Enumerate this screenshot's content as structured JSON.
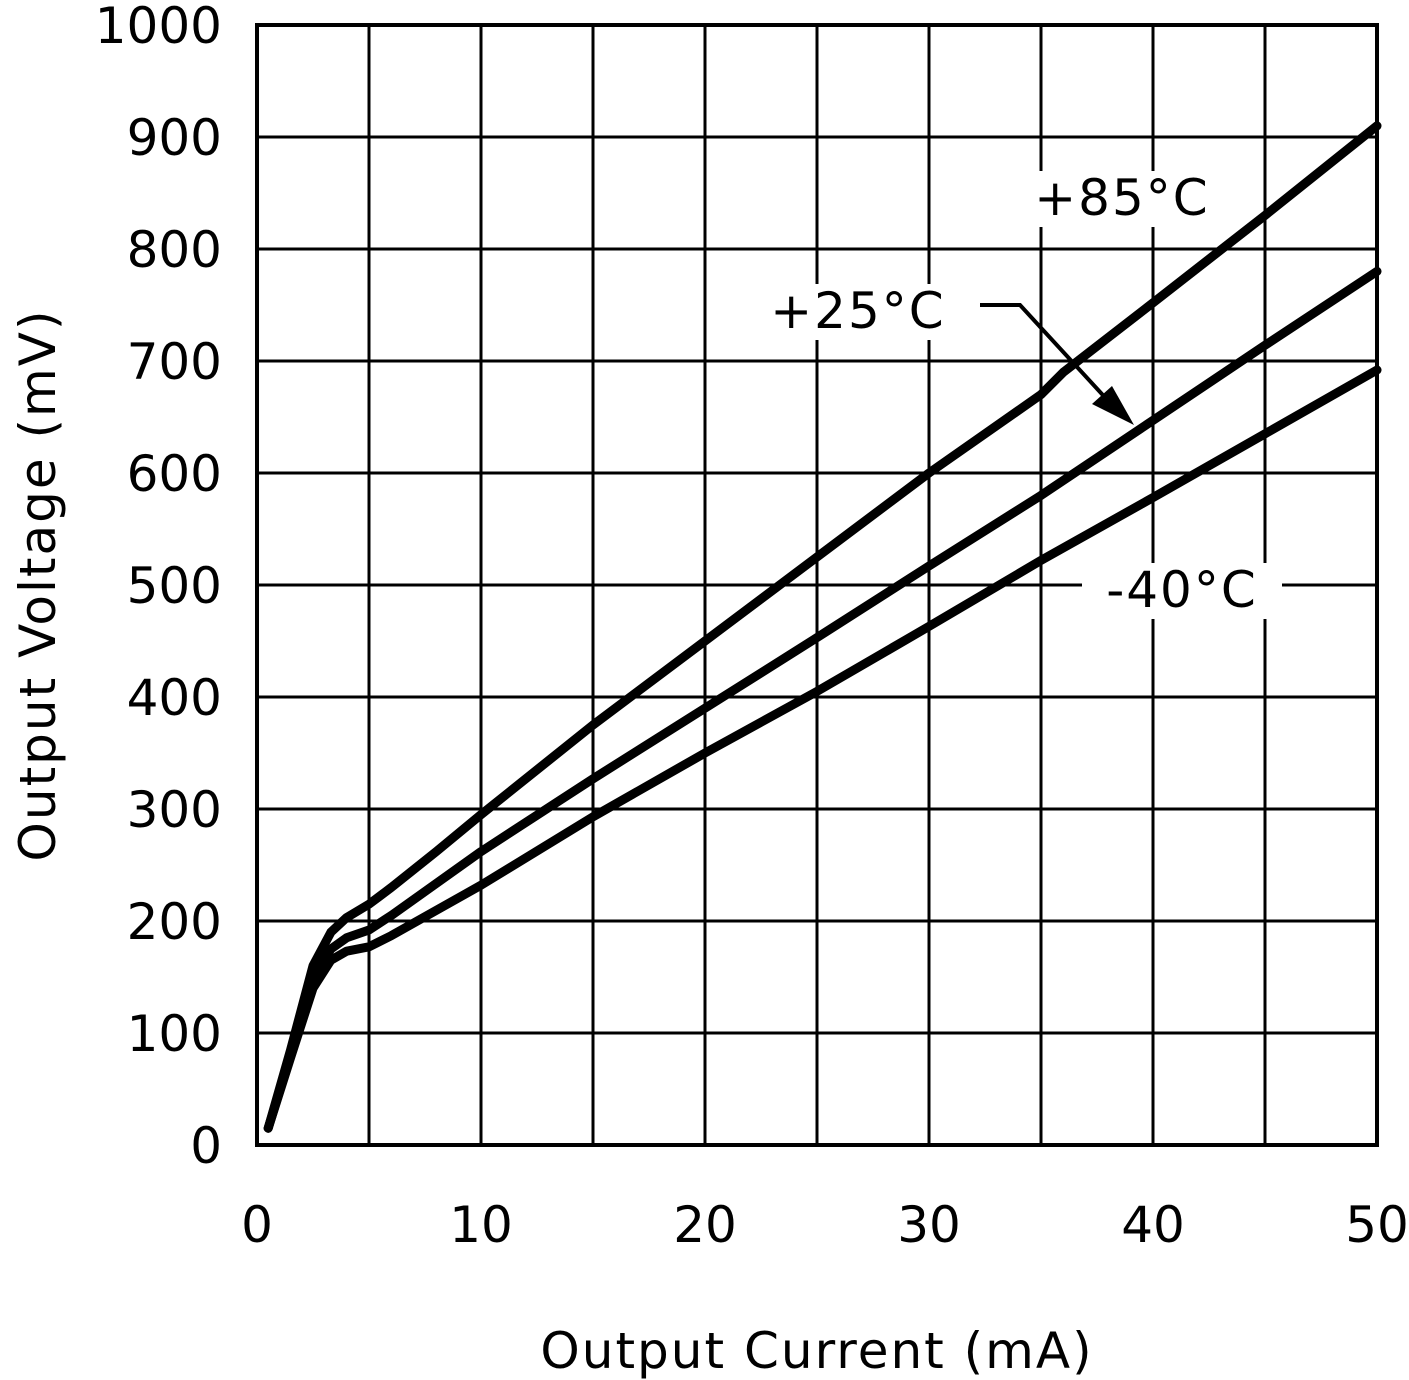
{
  "chart_data": {
    "type": "line",
    "title": "",
    "xlabel": "Output Current (mA)",
    "ylabel": "Output Voltage (mV)",
    "xlim": [
      0,
      50
    ],
    "ylim": [
      0,
      1000
    ],
    "x_ticks": [
      "0",
      "10",
      "20",
      "30",
      "40",
      "50"
    ],
    "y_ticks": [
      "0",
      "100",
      "200",
      "300",
      "400",
      "500",
      "600",
      "700",
      "800",
      "900",
      "1000"
    ],
    "grid": true,
    "line_color": "#000000",
    "series": [
      {
        "name": "+85°C",
        "points": [
          [
            0.5,
            15
          ],
          [
            1.5,
            85
          ],
          [
            2.5,
            160
          ],
          [
            3.3,
            190
          ],
          [
            4,
            203
          ],
          [
            5,
            215
          ],
          [
            6,
            230
          ],
          [
            8,
            262
          ],
          [
            10,
            295
          ],
          [
            15,
            375
          ],
          [
            20,
            450
          ],
          [
            25,
            525
          ],
          [
            30,
            600
          ],
          [
            35,
            670
          ],
          [
            36,
            690
          ],
          [
            40,
            752
          ],
          [
            45,
            830
          ],
          [
            50,
            910
          ]
        ]
      },
      {
        "name": "+25°C",
        "points": [
          [
            0.5,
            15
          ],
          [
            1.5,
            80
          ],
          [
            2.5,
            148
          ],
          [
            3.3,
            175
          ],
          [
            4,
            185
          ],
          [
            5,
            192
          ],
          [
            6,
            205
          ],
          [
            10,
            262
          ],
          [
            15,
            327
          ],
          [
            20,
            390
          ],
          [
            25,
            453
          ],
          [
            30,
            517
          ],
          [
            35,
            580
          ],
          [
            40,
            647
          ],
          [
            45,
            714
          ],
          [
            50,
            780
          ]
        ]
      },
      {
        "name": "-40°C",
        "points": [
          [
            0.5,
            15
          ],
          [
            1.5,
            78
          ],
          [
            2.5,
            140
          ],
          [
            3.3,
            165
          ],
          [
            4,
            173
          ],
          [
            5,
            177
          ],
          [
            6,
            187
          ],
          [
            10,
            232
          ],
          [
            15,
            293
          ],
          [
            20,
            350
          ],
          [
            25,
            405
          ],
          [
            30,
            463
          ],
          [
            35,
            522
          ],
          [
            40,
            578
          ],
          [
            45,
            635
          ],
          [
            50,
            692
          ]
        ]
      }
    ]
  }
}
